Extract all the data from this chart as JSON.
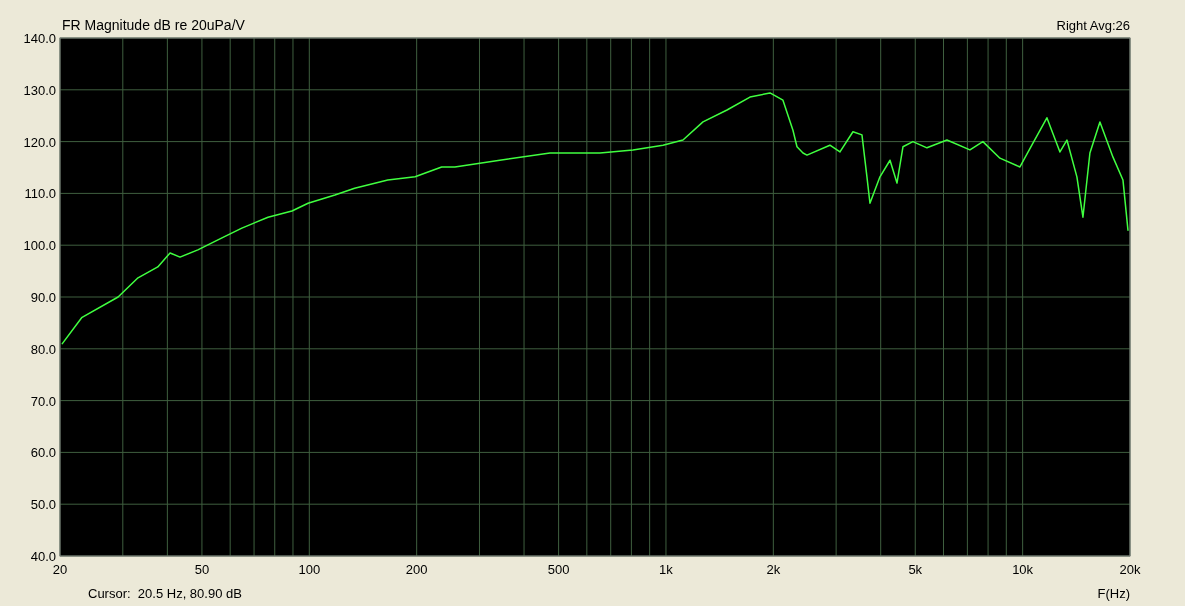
{
  "chart_data": {
    "type": "line",
    "title": "FR Magnitude dB re 20uPa/V",
    "xlabel": "F(Hz)",
    "annotations": [
      "Right  Avg:26",
      "Cursor:  20.5 Hz, 80.90 dB"
    ],
    "log": "x",
    "grid": true,
    "xlim": [
      20,
      20000
    ],
    "ylim": [
      40,
      140
    ],
    "xticks": [
      20,
      {
        "value": 30,
        "label": null
      },
      {
        "value": 40,
        "label": null
      },
      50,
      {
        "value": 60,
        "label": null
      },
      {
        "value": 70,
        "label": null
      },
      {
        "value": 80,
        "label": null
      },
      {
        "value": 90,
        "label": null
      },
      100,
      200,
      {
        "value": 300,
        "label": null
      },
      {
        "value": 400,
        "label": null
      },
      500,
      {
        "value": 600,
        "label": null
      },
      {
        "value": 700,
        "label": null
      },
      {
        "value": 800,
        "label": null
      },
      {
        "value": 900,
        "label": null
      },
      {
        "value": 1000,
        "label": "1k"
      },
      {
        "value": 2000,
        "label": "2k"
      },
      {
        "value": 3000,
        "label": null
      },
      {
        "value": 4000,
        "label": null
      },
      {
        "value": 5000,
        "label": "5k"
      },
      {
        "value": 6000,
        "label": null
      },
      {
        "value": 7000,
        "label": null
      },
      {
        "value": 8000,
        "label": null
      },
      {
        "value": 9000,
        "label": null
      },
      {
        "value": 10000,
        "label": "10k"
      },
      {
        "value": 20000,
        "label": "20k"
      }
    ],
    "yticks": [
      {
        "value": 40,
        "label": "40.0"
      },
      {
        "value": 50,
        "label": "50.0"
      },
      {
        "value": 60,
        "label": "60.0"
      },
      {
        "value": 70,
        "label": "70.0"
      },
      {
        "value": 80,
        "label": "80.0"
      },
      {
        "value": 90,
        "label": "90.0"
      },
      {
        "value": 100,
        "label": "100.0"
      },
      {
        "value": 110,
        "label": "110.0"
      },
      {
        "value": 120,
        "label": "120.0"
      },
      {
        "value": 130,
        "label": "130.0"
      },
      {
        "value": 140,
        "label": "140.0"
      }
    ],
    "x": [
      20.3,
      23,
      29.1,
      33.1,
      37.6,
      40.7,
      43.4,
      48.7,
      56.9,
      64.7,
      76.6,
      89.4,
      99.2,
      118,
      134,
      166,
      198,
      235,
      256,
      342,
      473,
      653,
      808,
      981,
      1116,
      1270,
      1483,
      1720,
      1957,
      2128,
      2270,
      2330,
      2422,
      2485,
      2881,
      3075,
      3344,
      3544,
      3660,
      3732,
      3981,
      4248,
      4443,
      4618,
      4925,
      5392,
      6135,
      7116,
      7737,
      8637,
      9827,
      10688,
      11696,
      12723,
      13310,
      14196,
      14760,
      15440,
      16470,
      17920,
      19110,
      19740
    ],
    "series": [
      {
        "color": "#40ff40",
        "values": [
          81,
          86,
          90,
          93.7,
          95.8,
          98.5,
          97.7,
          99.1,
          101.4,
          103.3,
          105.4,
          106.6,
          108.1,
          109.7,
          111,
          112.6,
          113.2,
          115.1,
          115.1,
          116.4,
          117.8,
          117.8,
          118.4,
          119.3,
          120.3,
          123.8,
          126.1,
          128.6,
          129.4,
          128,
          122.2,
          119,
          117.8,
          117.4,
          119.3,
          118,
          121.9,
          121.3,
          113.2,
          108.1,
          113.2,
          116.4,
          112,
          119,
          120,
          118.8,
          120.3,
          118.4,
          120,
          116.8,
          115.1,
          119.7,
          124.6,
          118,
          120.3,
          113.2,
          105.4,
          117.8,
          123.8,
          117,
          112.6,
          102.9
        ]
      }
    ]
  }
}
